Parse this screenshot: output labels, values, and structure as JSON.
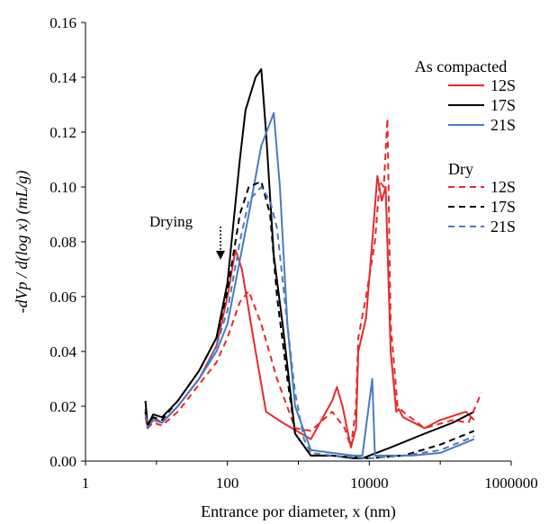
{
  "chart_data": {
    "type": "line",
    "xlabel": "Entrance por diameter, x (nm)",
    "ylabel": "-dVp / d(log x) (mL/g)",
    "xscale": "log",
    "xlim": [
      1,
      1000000
    ],
    "ylim": [
      0,
      0.16
    ],
    "x_ticks": [
      "1",
      "100",
      "10000",
      "1000000"
    ],
    "y_ticks": [
      "0.00",
      "0.02",
      "0.04",
      "0.06",
      "0.08",
      "0.10",
      "0.12",
      "0.14",
      "0.16"
    ],
    "grid": false,
    "legend_position": "top-right",
    "legend_groups": [
      {
        "title": "As compacted",
        "entries": [
          "12S",
          "17S",
          "21S"
        ]
      },
      {
        "title": "Dry",
        "entries": [
          "12S",
          "17S",
          "21S"
        ]
      }
    ],
    "annotation": {
      "text": "Drying",
      "arrow": "down",
      "x": 60,
      "y": 0.085
    },
    "series": [
      {
        "name": "12S",
        "group": "As compacted",
        "color": "#e8292b",
        "dash": "solid",
        "points": [
          [
            7,
            0.019
          ],
          [
            7.5,
            0.013
          ],
          [
            9,
            0.016
          ],
          [
            12,
            0.014
          ],
          [
            20,
            0.02
          ],
          [
            40,
            0.03
          ],
          [
            70,
            0.042
          ],
          [
            100,
            0.06
          ],
          [
            130,
            0.077
          ],
          [
            160,
            0.07
          ],
          [
            250,
            0.04
          ],
          [
            350,
            0.018
          ],
          [
            600,
            0.014
          ],
          [
            1500,
            0.008
          ],
          [
            3000,
            0.022
          ],
          [
            3500,
            0.027
          ],
          [
            4200,
            0.02
          ],
          [
            5500,
            0.005
          ],
          [
            6500,
            0.012
          ],
          [
            7000,
            0.04
          ],
          [
            9000,
            0.052
          ],
          [
            11000,
            0.08
          ],
          [
            13000,
            0.104
          ],
          [
            15000,
            0.095
          ],
          [
            17000,
            0.1
          ],
          [
            20000,
            0.04
          ],
          [
            24000,
            0.018
          ],
          [
            26000,
            0.019
          ],
          [
            30000,
            0.016
          ],
          [
            60000,
            0.012
          ],
          [
            100000,
            0.015
          ],
          [
            230000,
            0.018
          ],
          [
            300000,
            0.015
          ]
        ]
      },
      {
        "name": "17S",
        "group": "As compacted",
        "color": "#000000",
        "dash": "solid",
        "points": [
          [
            7,
            0.022
          ],
          [
            7.5,
            0.013
          ],
          [
            9,
            0.017
          ],
          [
            12,
            0.016
          ],
          [
            20,
            0.022
          ],
          [
            40,
            0.033
          ],
          [
            70,
            0.045
          ],
          [
            100,
            0.065
          ],
          [
            150,
            0.11
          ],
          [
            180,
            0.128
          ],
          [
            250,
            0.14
          ],
          [
            300,
            0.143
          ],
          [
            350,
            0.12
          ],
          [
            450,
            0.075
          ],
          [
            600,
            0.05
          ],
          [
            900,
            0.01
          ],
          [
            1500,
            0.002
          ],
          [
            3000,
            0.002
          ],
          [
            6000,
            0.001
          ],
          [
            8000,
            0.001
          ],
          [
            10000,
            0.002
          ],
          [
            20000,
            0.005
          ],
          [
            60000,
            0.01
          ],
          [
            150000,
            0.014
          ],
          [
            300000,
            0.018
          ]
        ]
      },
      {
        "name": "21S",
        "group": "As compacted",
        "color": "#4a7bbf",
        "dash": "solid",
        "points": [
          [
            7,
            0.018
          ],
          [
            7.5,
            0.012
          ],
          [
            9,
            0.015
          ],
          [
            12,
            0.014
          ],
          [
            20,
            0.02
          ],
          [
            40,
            0.03
          ],
          [
            70,
            0.04
          ],
          [
            100,
            0.05
          ],
          [
            200,
            0.09
          ],
          [
            300,
            0.115
          ],
          [
            450,
            0.127
          ],
          [
            550,
            0.1
          ],
          [
            700,
            0.05
          ],
          [
            900,
            0.02
          ],
          [
            1500,
            0.004
          ],
          [
            3000,
            0.003
          ],
          [
            6000,
            0.002
          ],
          [
            8000,
            0.002
          ],
          [
            11000,
            0.03
          ],
          [
            12000,
            0.002
          ],
          [
            40000,
            0.002
          ],
          [
            100000,
            0.003
          ],
          [
            300000,
            0.008
          ]
        ]
      },
      {
        "name": "12S",
        "group": "Dry",
        "color": "#e8292b",
        "dash": "dashed",
        "points": [
          [
            7,
            0.016
          ],
          [
            7.5,
            0.012
          ],
          [
            9,
            0.014
          ],
          [
            12,
            0.013
          ],
          [
            20,
            0.018
          ],
          [
            40,
            0.028
          ],
          [
            70,
            0.036
          ],
          [
            100,
            0.045
          ],
          [
            150,
            0.058
          ],
          [
            200,
            0.062
          ],
          [
            300,
            0.05
          ],
          [
            500,
            0.03
          ],
          [
            900,
            0.012
          ],
          [
            1500,
            0.011
          ],
          [
            3000,
            0.018
          ],
          [
            4500,
            0.012
          ],
          [
            5500,
            0.005
          ],
          [
            6500,
            0.02
          ],
          [
            7000,
            0.045
          ],
          [
            9000,
            0.06
          ],
          [
            12000,
            0.08
          ],
          [
            14000,
            0.102
          ],
          [
            16000,
            0.1
          ],
          [
            18000,
            0.125
          ],
          [
            20000,
            0.05
          ],
          [
            25000,
            0.02
          ],
          [
            30000,
            0.018
          ],
          [
            60000,
            0.012
          ],
          [
            150000,
            0.015
          ],
          [
            250000,
            0.014
          ],
          [
            380000,
            0.025
          ]
        ]
      },
      {
        "name": "17S",
        "group": "Dry",
        "color": "#000000",
        "dash": "dashed",
        "points": [
          [
            7,
            0.018
          ],
          [
            7.5,
            0.013
          ],
          [
            9,
            0.016
          ],
          [
            12,
            0.015
          ],
          [
            20,
            0.022
          ],
          [
            40,
            0.033
          ],
          [
            70,
            0.045
          ],
          [
            100,
            0.062
          ],
          [
            150,
            0.09
          ],
          [
            200,
            0.1
          ],
          [
            300,
            0.102
          ],
          [
            400,
            0.09
          ],
          [
            500,
            0.06
          ],
          [
            700,
            0.03
          ],
          [
            900,
            0.01
          ],
          [
            1500,
            0.002
          ],
          [
            3000,
            0.002
          ],
          [
            10000,
            0.001
          ],
          [
            30000,
            0.002
          ],
          [
            100000,
            0.006
          ],
          [
            300000,
            0.011
          ]
        ]
      },
      {
        "name": "21S",
        "group": "Dry",
        "color": "#4a7bbf",
        "dash": "dashed",
        "points": [
          [
            7,
            0.017
          ],
          [
            7.5,
            0.012
          ],
          [
            9,
            0.015
          ],
          [
            12,
            0.014
          ],
          [
            20,
            0.02
          ],
          [
            40,
            0.03
          ],
          [
            70,
            0.042
          ],
          [
            100,
            0.055
          ],
          [
            150,
            0.08
          ],
          [
            200,
            0.095
          ],
          [
            300,
            0.1
          ],
          [
            400,
            0.095
          ],
          [
            500,
            0.085
          ],
          [
            700,
            0.05
          ],
          [
            900,
            0.025
          ],
          [
            1200,
            0.008
          ],
          [
            1500,
            0.003
          ],
          [
            3000,
            0.002
          ],
          [
            10000,
            0.001
          ],
          [
            30000,
            0.002
          ],
          [
            100000,
            0.004
          ],
          [
            300000,
            0.009
          ]
        ]
      }
    ]
  }
}
